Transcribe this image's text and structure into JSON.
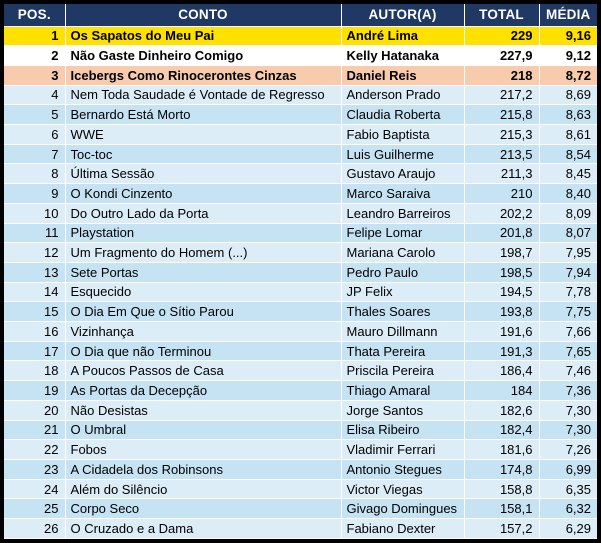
{
  "colors": {
    "frame": "#000000",
    "gridline": "#FFFFFF",
    "header_bg": "#1F3864",
    "header_text": "#FFFFFF",
    "text": "#000000",
    "rank1_bg": "#FFE100",
    "rank2_bg": "#FFFFFF",
    "rank3_bg": "#F7CBAC",
    "row_even_bg": "#DCEDF8",
    "row_odd_bg": "#C6E3F3"
  },
  "chart_data": {
    "type": "table",
    "title": "",
    "columns": [
      "POS.",
      "CONTO",
      "AUTOR(A)",
      "TOTAL",
      "MÉDIA"
    ],
    "rows": [
      [
        "1",
        "Os Sapatos do Meu Pai",
        "André Lima",
        "229",
        "9,16"
      ],
      [
        "2",
        "Não Gaste Dinheiro Comigo",
        "Kelly Hatanaka",
        "227,9",
        "9,12"
      ],
      [
        "3",
        "Icebergs Como Rinocerontes Cinzas",
        "Daniel Reis",
        "218",
        "8,72"
      ],
      [
        "4",
        "Nem Toda Saudade é Vontade de Regresso",
        "Anderson Prado",
        "217,2",
        "8,69"
      ],
      [
        "5",
        "Bernardo Está Morto",
        "Claudia Roberta",
        "215,8",
        "8,63"
      ],
      [
        "6",
        "WWE",
        "Fabio Baptista",
        "215,3",
        "8,61"
      ],
      [
        "7",
        "Toc-toc",
        "Luis Guilherme",
        "213,5",
        "8,54"
      ],
      [
        "8",
        "Última Sessão",
        "Gustavo Araujo",
        "211,3",
        "8,45"
      ],
      [
        "9",
        "O Kondi Cinzento",
        "Marco Saraiva",
        "210",
        "8,40"
      ],
      [
        "10",
        "Do Outro Lado da Porta",
        "Leandro Barreiros",
        "202,2",
        "8,09"
      ],
      [
        "11",
        "Playstation",
        "Felipe Lomar",
        "201,8",
        "8,07"
      ],
      [
        "12",
        "Um Fragmento do Homem (...)",
        "Mariana Carolo",
        "198,7",
        "7,95"
      ],
      [
        "13",
        "Sete Portas",
        "Pedro Paulo",
        "198,5",
        "7,94"
      ],
      [
        "14",
        "Esquecido",
        "JP Felix",
        "194,5",
        "7,78"
      ],
      [
        "15",
        "O Dia Em Que o Sítio Parou",
        "Thales Soares",
        "193,8",
        "7,75"
      ],
      [
        "16",
        "Vizinhança",
        "Mauro Dillmann",
        "191,6",
        "7,66"
      ],
      [
        "17",
        "O Dia que não Terminou",
        "Thata Pereira",
        "191,3",
        "7,65"
      ],
      [
        "18",
        "A Poucos Passos de Casa",
        "Priscila Pereira",
        "186,4",
        "7,46"
      ],
      [
        "19",
        "As Portas da Decepção",
        "Thiago Amaral",
        "184",
        "7,36"
      ],
      [
        "20",
        "Não Desistas",
        "Jorge Santos",
        "182,6",
        "7,30"
      ],
      [
        "21",
        "O Umbral",
        "Elisa Ribeiro",
        "182,4",
        "7,30"
      ],
      [
        "22",
        "Fobos",
        "Vladimir Ferrari",
        "181,6",
        "7,26"
      ],
      [
        "23",
        "A Cidadela dos Robinsons",
        "Antonio Stegues",
        "174,8",
        "6,99"
      ],
      [
        "24",
        "Além do Silêncio",
        "Victor Viegas",
        "158,8",
        "6,35"
      ],
      [
        "25",
        "Corpo Seco",
        "Givago Domingues",
        "158,1",
        "6,32"
      ],
      [
        "26",
        "O Cruzado e a Dama",
        "Fabiano Dexter",
        "157,2",
        "6,29"
      ]
    ]
  }
}
